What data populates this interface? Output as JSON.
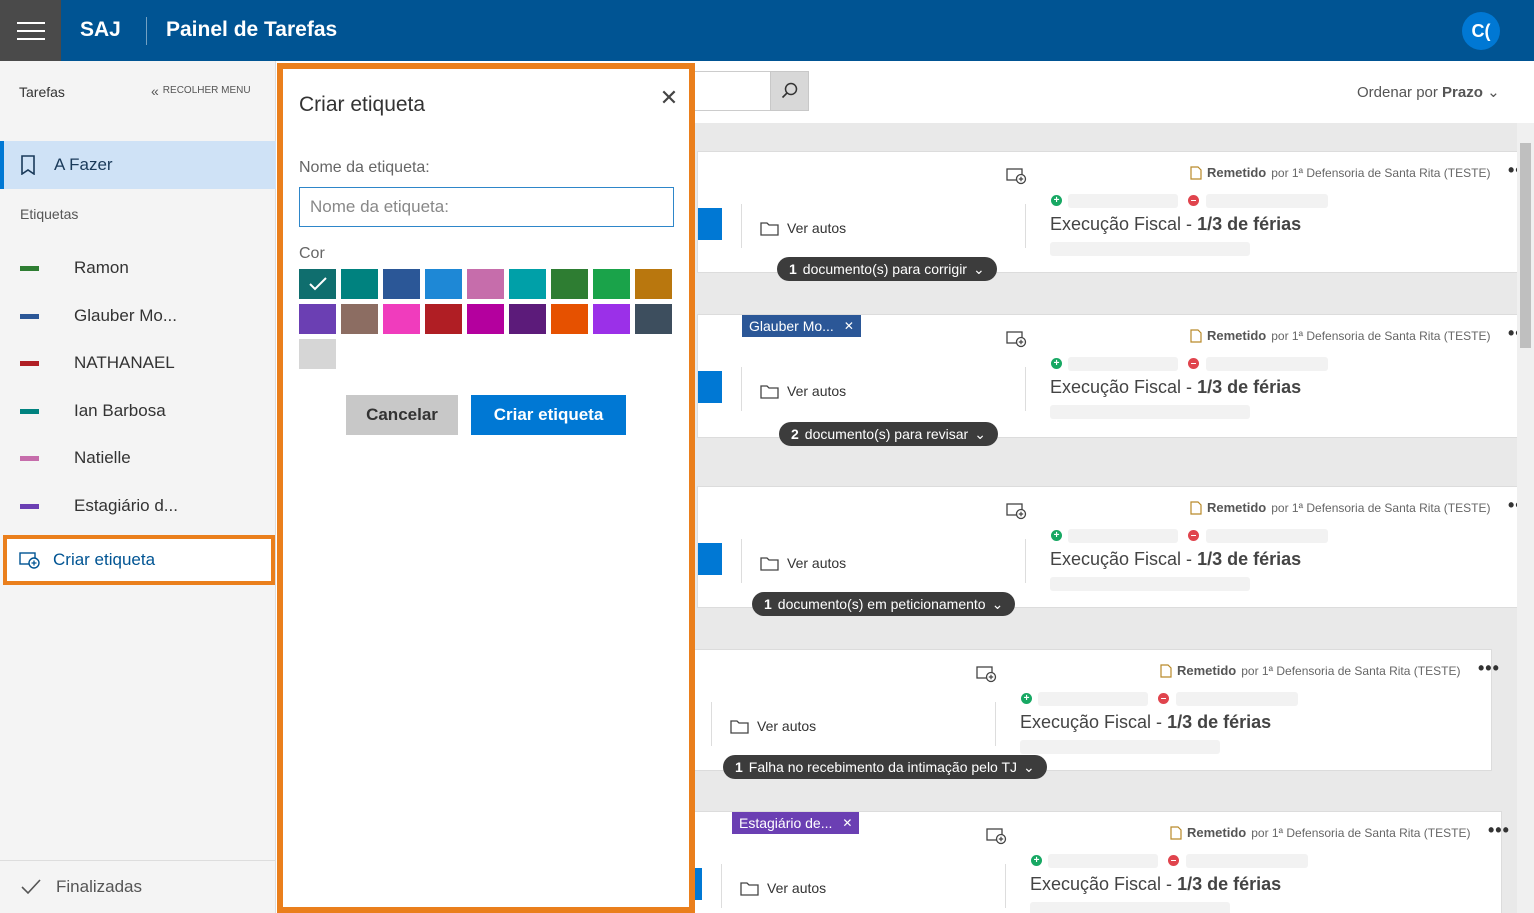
{
  "header": {
    "brand": "SAJ",
    "title": "Painel de Tarefas",
    "avatar_initials": "C("
  },
  "sidebar": {
    "title": "Tarefas",
    "collapse_label": "RECOLHER MENU",
    "todo_label": "A Fazer",
    "tags_heading": "Etiquetas",
    "tags": [
      {
        "name": "Ramon",
        "color": "#2e7d32"
      },
      {
        "name": "Glauber Mo...",
        "color": "#2b5797"
      },
      {
        "name": "NATHANAEL",
        "color": "#b01e24"
      },
      {
        "name": "Ian Barbosa",
        "color": "#00827f"
      },
      {
        "name": "Natielle",
        "color": "#c66dab"
      },
      {
        "name": "Estagiário d...",
        "color": "#6b3fb3"
      }
    ],
    "create_tag_label": "Criar etiqueta",
    "finalized_label": "Finalizadas"
  },
  "toolbar": {
    "sort_prefix": "Ordenar por",
    "sort_value": "Prazo"
  },
  "cards": [
    {
      "remetido": "Remetido",
      "by": "por 1ª Defensoria de Santa Rita (TESTE)",
      "ver_autos": "Ver autos",
      "exec_prefix": "Execução Fiscal - ",
      "exec_bold": "1/3 de férias",
      "pill_count": "1",
      "pill_text": "documento(s) para corrigir",
      "chip": ""
    },
    {
      "remetido": "Remetido",
      "by": "por 1ª Defensoria de Santa Rita (TESTE)",
      "ver_autos": "Ver autos",
      "exec_prefix": "Execução Fiscal - ",
      "exec_bold": "1/3 de férias",
      "pill_count": "2",
      "pill_text": "documento(s) para revisar",
      "chip": "Glauber Mo..."
    },
    {
      "remetido": "Remetido",
      "by": "por 1ª Defensoria de Santa Rita (TESTE)",
      "ver_autos": "Ver autos",
      "exec_prefix": "Execução Fiscal - ",
      "exec_bold": "1/3 de férias",
      "pill_count": "1",
      "pill_text": "documento(s) em peticionamento",
      "chip": ""
    },
    {
      "remetido": "Remetido",
      "by": "por 1ª Defensoria de Santa Rita (TESTE)",
      "ver_autos": "Ver autos",
      "exec_prefix": "Execução Fiscal - ",
      "exec_bold": "1/3 de férias",
      "pill_count": "1",
      "pill_text": "Falha no recebimento da intimação pelo TJ",
      "chip": ""
    },
    {
      "remetido": "Remetido",
      "by": "por 1ª Defensoria de Santa Rita (TESTE)",
      "ver_autos": "Ver autos",
      "exec_prefix": "Execução Fiscal - ",
      "exec_bold": "1/3 de férias",
      "pill_count": "",
      "pill_text": "",
      "chip": "Estagiário de..."
    }
  ],
  "modal": {
    "title": "Criar etiqueta",
    "name_label": "Nome da etiqueta:",
    "name_placeholder": "Nome da etiqueta:",
    "name_value": "",
    "color_label": "Cor",
    "selected_color": "#00827f",
    "colors": [
      "#0f6e6e",
      "#00827f",
      "#2b5797",
      "#1e88d6",
      "#c66dab",
      "#00a0a8",
      "#2e7d32",
      "#1aa34a",
      "#b9770e",
      "#6b3fb3",
      "#8c6d62",
      "#f03cbd",
      "#b01e24",
      "#b4009e",
      "#5c1b7a",
      "#e65100",
      "#9b30e8",
      "#3d4e5e",
      "#d6d6d6"
    ],
    "cancel_label": "Cancelar",
    "create_label": "Criar etiqueta"
  }
}
